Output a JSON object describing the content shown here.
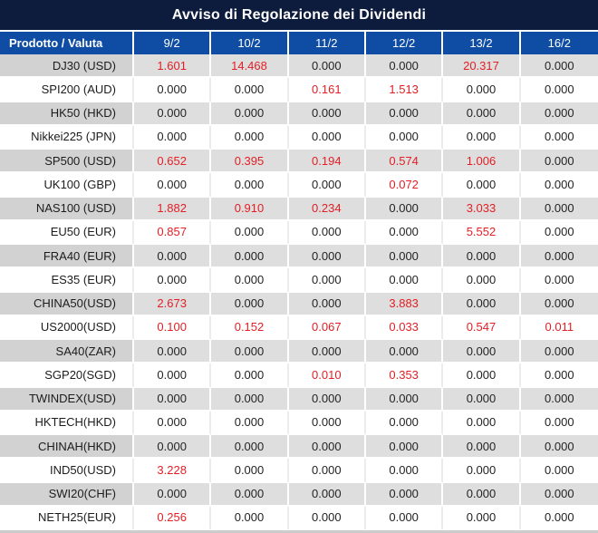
{
  "title": "Avviso di Regolazione dei Dividendi",
  "table": {
    "header": {
      "product_label": "Prodotto / Valuta",
      "dates": [
        "9/2",
        "10/2",
        "11/2",
        "12/2",
        "13/2",
        "16/2"
      ]
    },
    "rows": [
      {
        "product": "DJ30 (USD)",
        "values": [
          "1.601",
          "14.468",
          "0.000",
          "0.000",
          "20.317",
          "0.000"
        ]
      },
      {
        "product": "SPI200 (AUD)",
        "values": [
          "0.000",
          "0.000",
          "0.161",
          "1.513",
          "0.000",
          "0.000"
        ]
      },
      {
        "product": "HK50 (HKD)",
        "values": [
          "0.000",
          "0.000",
          "0.000",
          "0.000",
          "0.000",
          "0.000"
        ]
      },
      {
        "product": "Nikkei225 (JPN)",
        "values": [
          "0.000",
          "0.000",
          "0.000",
          "0.000",
          "0.000",
          "0.000"
        ]
      },
      {
        "product": "SP500 (USD)",
        "values": [
          "0.652",
          "0.395",
          "0.194",
          "0.574",
          "1.006",
          "0.000"
        ]
      },
      {
        "product": "UK100 (GBP)",
        "values": [
          "0.000",
          "0.000",
          "0.000",
          "0.072",
          "0.000",
          "0.000"
        ]
      },
      {
        "product": "NAS100 (USD)",
        "values": [
          "1.882",
          "0.910",
          "0.234",
          "0.000",
          "3.033",
          "0.000"
        ]
      },
      {
        "product": "EU50 (EUR)",
        "values": [
          "0.857",
          "0.000",
          "0.000",
          "0.000",
          "5.552",
          "0.000"
        ]
      },
      {
        "product": "FRA40 (EUR)",
        "values": [
          "0.000",
          "0.000",
          "0.000",
          "0.000",
          "0.000",
          "0.000"
        ]
      },
      {
        "product": "ES35 (EUR)",
        "values": [
          "0.000",
          "0.000",
          "0.000",
          "0.000",
          "0.000",
          "0.000"
        ]
      },
      {
        "product": "CHINA50(USD)",
        "values": [
          "2.673",
          "0.000",
          "0.000",
          "3.883",
          "0.000",
          "0.000"
        ]
      },
      {
        "product": "US2000(USD)",
        "values": [
          "0.100",
          "0.152",
          "0.067",
          "0.033",
          "0.547",
          "0.011"
        ]
      },
      {
        "product": "SA40(ZAR)",
        "values": [
          "0.000",
          "0.000",
          "0.000",
          "0.000",
          "0.000",
          "0.000"
        ]
      },
      {
        "product": "SGP20(SGD)",
        "values": [
          "0.000",
          "0.000",
          "0.010",
          "0.353",
          "0.000",
          "0.000"
        ]
      },
      {
        "product": "TWINDEX(USD)",
        "values": [
          "0.000",
          "0.000",
          "0.000",
          "0.000",
          "0.000",
          "0.000"
        ]
      },
      {
        "product": "HKTECH(HKD)",
        "values": [
          "0.000",
          "0.000",
          "0.000",
          "0.000",
          "0.000",
          "0.000"
        ]
      },
      {
        "product": "CHINAH(HKD)",
        "values": [
          "0.000",
          "0.000",
          "0.000",
          "0.000",
          "0.000",
          "0.000"
        ]
      },
      {
        "product": "IND50(USD)",
        "values": [
          "3.228",
          "0.000",
          "0.000",
          "0.000",
          "0.000",
          "0.000"
        ]
      },
      {
        "product": "SWI20(CHF)",
        "values": [
          "0.000",
          "0.000",
          "0.000",
          "0.000",
          "0.000",
          "0.000"
        ]
      },
      {
        "product": "NETH25(EUR)",
        "values": [
          "0.256",
          "0.000",
          "0.000",
          "0.000",
          "0.000",
          "0.000"
        ]
      }
    ]
  },
  "colors": {
    "title_bg": "#0d1c3d",
    "header_bg": "#0e4da3",
    "stripe_label_bg": "#d2d2d2",
    "stripe_value_bg": "#dedede",
    "positive_value": "#e31e24",
    "zero_value": "#232323"
  }
}
